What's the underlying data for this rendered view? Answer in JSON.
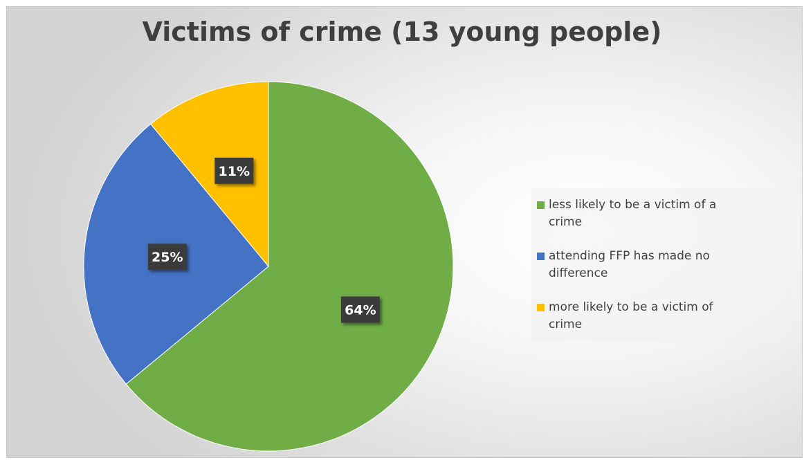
{
  "chart_data": {
    "type": "pie",
    "title": "Victims of crime (13 young people)",
    "slices": [
      {
        "label": "less likely to be a victim of a crime",
        "value": 64,
        "data_label": "64%",
        "color": "#70ad47"
      },
      {
        "label": "attending FFP has made no difference",
        "value": 25,
        "data_label": "25%",
        "color": "#4472c4"
      },
      {
        "label": "more likely to be a victim of crime",
        "value": 11,
        "data_label": "11%",
        "color": "#ffc000"
      }
    ],
    "legend_position": "right"
  }
}
